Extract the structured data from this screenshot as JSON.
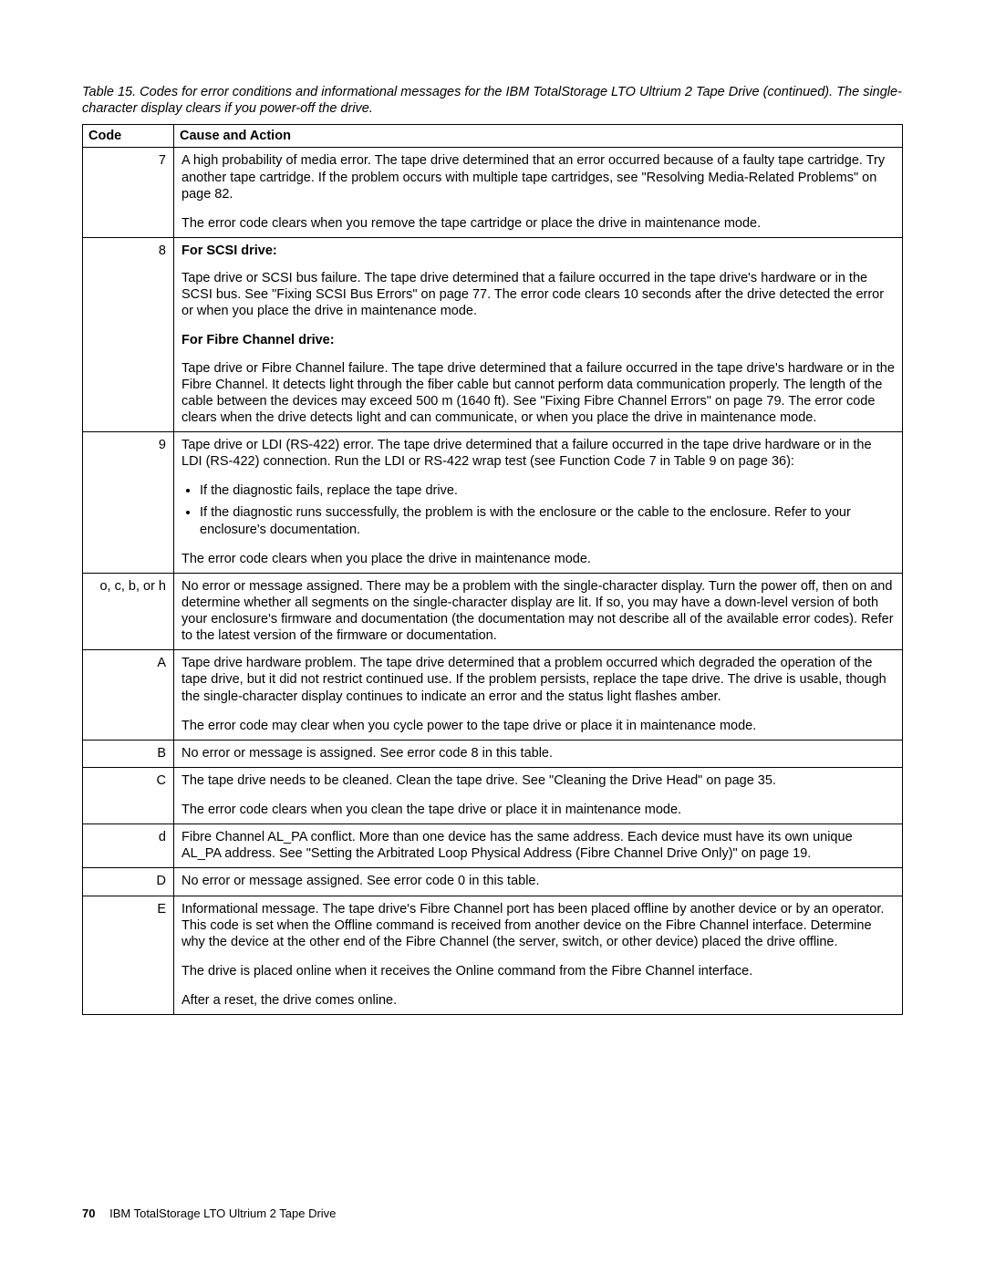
{
  "caption": "Table 15. Codes for error conditions and informational messages for the IBM TotalStorage LTO Ultrium 2 Tape Drive  (continued).  The single-character display clears if you power-off the drive.",
  "headers": {
    "code": "Code",
    "cause": "Cause and Action"
  },
  "rows": {
    "r7": {
      "code": "7",
      "p1": "A high probability of media error. The tape drive determined that an error occurred because of a faulty tape cartridge. Try another tape cartridge. If the problem occurs with multiple tape cartridges, see \"Resolving Media-Related Problems\" on page 82.",
      "p2": "The error code clears when you remove the tape cartridge or place the drive in maintenance mode."
    },
    "r8": {
      "code": "8",
      "h1": "For SCSI drive:",
      "p1": "Tape drive or SCSI bus failure. The tape drive determined that a failure occurred in the tape drive's hardware or in the SCSI bus. See \"Fixing SCSI Bus Errors\" on page 77. The error code clears 10 seconds after the drive detected the error or when you place the drive in maintenance mode.",
      "h2": "For Fibre Channel drive:",
      "p2": "Tape drive or Fibre Channel failure. The tape drive determined that a failure occurred in the tape drive's hardware or in the Fibre Channel. It detects light through the fiber cable but cannot perform data communication properly. The length of the cable between the devices may exceed 500 m (1640 ft). See \"Fixing Fibre Channel Errors\" on page 79. The error code clears when the drive detects light and can communicate, or when you place the drive in maintenance mode."
    },
    "r9": {
      "code": "9",
      "p1": "Tape drive or LDI (RS-422) error. The tape drive determined that a failure occurred in the tape drive hardware or in the LDI (RS-422) connection. Run the LDI or RS-422 wrap test (see Function Code 7 in Table 9 on page 36):",
      "b1": "If the diagnostic fails, replace the tape drive.",
      "b2": "If the diagnostic runs successfully, the problem is with the enclosure or the cable to the enclosure. Refer to your enclosure's documentation.",
      "p2": "The error code clears when you place the drive in maintenance mode."
    },
    "rocbh": {
      "code": "o, c, b, or h",
      "p1": "No error or message assigned. There may be a problem with the single-character display. Turn the power off, then on and determine whether all segments on the single-character display are lit. If so, you may have a down-level version of both your enclosure's firmware and documentation (the documentation may not describe all of the available error codes). Refer to the latest version of the firmware or documentation."
    },
    "rA": {
      "code": "A",
      "p1": "Tape drive hardware problem. The tape drive determined that a problem occurred which degraded the operation of the tape drive, but it did not restrict continued use. If the problem persists, replace the tape drive. The drive is usable, though the single-character display continues to indicate an error and the status light flashes amber.",
      "p2": "The error code may clear when you cycle power to the tape drive or place it in maintenance mode."
    },
    "rB": {
      "code": "B",
      "p1": "No error or message is assigned. See error code 8 in this table."
    },
    "rC": {
      "code": "C",
      "p1": "The tape drive needs to be cleaned. Clean the tape drive. See \"Cleaning the Drive Head\" on page 35.",
      "p2": "The error code clears when you clean the tape drive or place it in maintenance mode."
    },
    "rd": {
      "code": "d",
      "p1": "Fibre Channel AL_PA conflict. More than one device has the same address. Each device must have its own unique AL_PA address. See \"Setting the Arbitrated Loop Physical Address (Fibre Channel Drive Only)\" on page 19."
    },
    "rD": {
      "code": "D",
      "p1": "No error or message assigned. See error code 0 in this table."
    },
    "rE": {
      "code": "E",
      "p1": "Informational message. The tape drive's Fibre Channel port has been placed offline by another device or by an operator. This code is set when the Offline command is received from another device on the Fibre Channel interface. Determine why the device at the other end of the Fibre Channel (the server, switch, or other device) placed the drive offline.",
      "p2": "The drive is placed online when it receives the Online command from the Fibre Channel interface.",
      "p3": "After a reset, the drive comes online."
    }
  },
  "footer": {
    "page": "70",
    "title": "IBM TotalStorage LTO Ultrium 2 Tape Drive"
  }
}
